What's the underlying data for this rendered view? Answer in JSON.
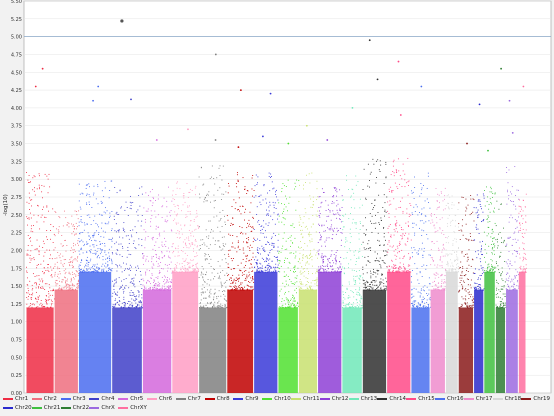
{
  "chart_data": {
    "type": "scatter",
    "subtype": "manhattan",
    "ylabel": "-log(10)",
    "ylim": [
      0,
      5.5
    ],
    "yticks": [
      "0.00",
      "0.25",
      "0.50",
      "0.75",
      "1.00",
      "1.25",
      "1.50",
      "1.75",
      "2.00",
      "2.25",
      "2.50",
      "2.75",
      "3.00",
      "3.25",
      "3.50",
      "3.75",
      "4.00",
      "4.25",
      "4.50",
      "4.75",
      "5.00",
      "5.25",
      "5.50"
    ],
    "threshold": 5.0,
    "grid": true,
    "legend_position": "bottom",
    "series": [
      {
        "name": "Chr1",
        "color": "#ee2c44",
        "max": 3.1,
        "peaks": [
          4.3,
          4.55
        ]
      },
      {
        "name": "Chr2",
        "color": "#ee6f7f",
        "max": 2.6,
        "peaks": []
      },
      {
        "name": "Chr3",
        "color": "#4a6cf0",
        "max": 3.0,
        "peaks": [
          4.1,
          4.3
        ]
      },
      {
        "name": "Chr4",
        "color": "#4040c8",
        "max": 2.9,
        "peaks": [
          5.22,
          4.12
        ]
      },
      {
        "name": "Chr5",
        "color": "#d467dc",
        "max": 2.9,
        "peaks": [
          3.55
        ]
      },
      {
        "name": "Chr6",
        "color": "#ff9ec4",
        "max": 3.0,
        "peaks": [
          3.7
        ]
      },
      {
        "name": "Chr7",
        "color": "#808080",
        "max": 3.2,
        "peaks": [
          4.75,
          3.55
        ]
      },
      {
        "name": "Chr8",
        "color": "#c00000",
        "max": 3.1,
        "peaks": [
          4.25,
          3.45
        ]
      },
      {
        "name": "Chr9",
        "color": "#3a3ad8",
        "max": 3.1,
        "peaks": [
          4.2,
          3.6
        ]
      },
      {
        "name": "Chr10",
        "color": "#50e030",
        "max": 3.0,
        "peaks": [
          3.5
        ]
      },
      {
        "name": "Chr11",
        "color": "#c8e070",
        "max": 3.1,
        "peaks": [
          3.75
        ]
      },
      {
        "name": "Chr12",
        "color": "#8e3fd6",
        "max": 2.9,
        "peaks": [
          3.55
        ]
      },
      {
        "name": "Chr13",
        "color": "#70e8b8",
        "max": 3.1,
        "peaks": [
          4.0
        ]
      },
      {
        "name": "Chr14",
        "color": "#303030",
        "max": 3.3,
        "peaks": [
          4.95,
          4.4
        ]
      },
      {
        "name": "Chr15",
        "color": "#ff4a88",
        "max": 3.3,
        "peaks": [
          4.65,
          3.9
        ]
      },
      {
        "name": "Chr16",
        "color": "#4a70ee",
        "max": 3.1,
        "peaks": [
          4.3
        ]
      },
      {
        "name": "Chr17",
        "color": "#ee8ccc",
        "max": 2.9,
        "peaks": []
      },
      {
        "name": "Chr18",
        "color": "#d8d8d8",
        "max": 2.8,
        "peaks": []
      },
      {
        "name": "Chr19",
        "color": "#8a1a1a",
        "max": 2.8,
        "peaks": [
          3.5
        ]
      },
      {
        "name": "Chr20",
        "color": "#2a2acd",
        "max": 2.8,
        "peaks": [
          4.05
        ]
      },
      {
        "name": "Chr21",
        "color": "#40c040",
        "max": 2.9,
        "peaks": [
          3.4
        ]
      },
      {
        "name": "Chr22",
        "color": "#2e7d32",
        "max": 2.7,
        "peaks": [
          4.55
        ]
      },
      {
        "name": "ChrX",
        "color": "#9c6ae0",
        "max": 3.2,
        "peaks": [
          4.1,
          3.65
        ]
      },
      {
        "name": "ChrXY",
        "color": "#ff6fa0",
        "max": 2.8,
        "peaks": [
          4.3
        ]
      }
    ]
  }
}
